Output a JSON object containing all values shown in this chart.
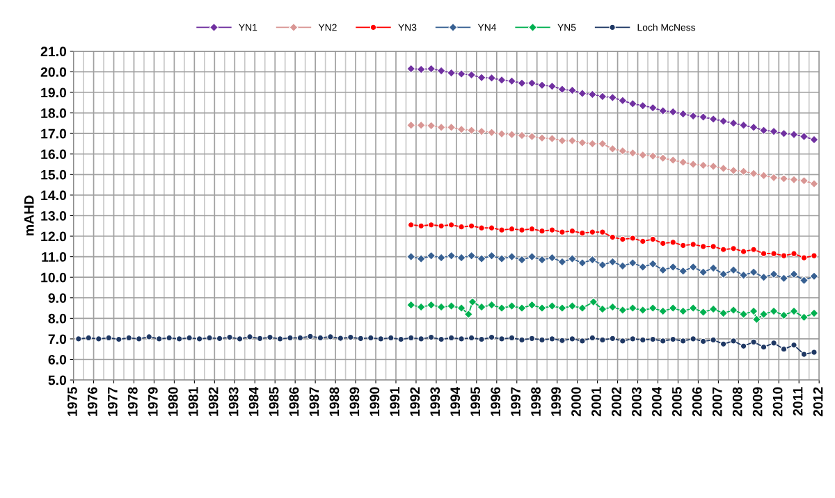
{
  "chart_data": {
    "type": "line",
    "ylabel": "mAHD",
    "xlim": [
      1975,
      2012
    ],
    "xticks": [
      1975,
      1976,
      1977,
      1978,
      1979,
      1980,
      1981,
      1982,
      1983,
      1984,
      1985,
      1986,
      1987,
      1988,
      1989,
      1990,
      1991,
      1992,
      1993,
      1994,
      1995,
      1996,
      1997,
      1998,
      1999,
      2000,
      2001,
      2002,
      2003,
      2004,
      2005,
      2006,
      2007,
      2008,
      2009,
      2010,
      2011,
      2012
    ],
    "ylim": [
      5,
      21
    ],
    "yticks": [
      {
        "value": 5,
        "label": "5.0"
      },
      {
        "value": 6,
        "label": "6.0"
      },
      {
        "value": 7,
        "label": "7.0"
      },
      {
        "value": 8,
        "label": "8.0"
      },
      {
        "value": 9,
        "label": "9.0"
      },
      {
        "value": 10,
        "label": "10.0"
      },
      {
        "value": 11,
        "label": "11.0"
      },
      {
        "value": 12,
        "label": "12.0"
      },
      {
        "value": 13,
        "label": "13.0"
      },
      {
        "value": 14,
        "label": "14.0"
      },
      {
        "value": 15,
        "label": "15.0"
      },
      {
        "value": 16,
        "label": "16.0"
      },
      {
        "value": 17,
        "label": "17.0"
      },
      {
        "value": 18,
        "label": "18.0"
      },
      {
        "value": 19,
        "label": "19.0"
      },
      {
        "value": 20,
        "label": "20.0"
      },
      {
        "value": 21,
        "label": "21.0"
      }
    ],
    "grid": true,
    "legend": "top",
    "line_style": "solid",
    "x": [
      1991.75,
      1992.25,
      1992.75,
      1993.25,
      1993.75,
      1994.25,
      1994.75,
      1995.25,
      1995.75,
      1996.25,
      1996.75,
      1997.25,
      1997.75,
      1998.25,
      1998.75,
      1999.25,
      1999.75,
      2000.25,
      2000.75,
      2001.25,
      2001.75,
      2002.25,
      2002.75,
      2003.25,
      2003.75,
      2004.25,
      2004.75,
      2005.25,
      2005.75,
      2006.25,
      2006.75,
      2007.25,
      2007.75,
      2008.25,
      2008.75,
      2009.25,
      2009.75,
      2010.25,
      2010.75,
      2011.25,
      2011.75
    ],
    "series": [
      {
        "name": "YN1",
        "color": "#7030a0",
        "marker": "diamond",
        "values": [
          20.15,
          20.12,
          20.15,
          20.05,
          19.95,
          19.9,
          19.85,
          19.72,
          19.7,
          19.6,
          19.55,
          19.45,
          19.45,
          19.35,
          19.3,
          19.15,
          19.1,
          18.95,
          18.9,
          18.8,
          18.75,
          18.6,
          18.45,
          18.35,
          18.25,
          18.1,
          18.05,
          17.95,
          17.85,
          17.8,
          17.7,
          17.6,
          17.5,
          17.4,
          17.3,
          17.15,
          17.1,
          17.0,
          16.95,
          16.85,
          16.7
        ]
      },
      {
        "name": "YN2",
        "color": "#d99694",
        "marker": "diamond",
        "values": [
          17.4,
          17.4,
          17.38,
          17.3,
          17.3,
          17.2,
          17.15,
          17.1,
          17.05,
          16.98,
          16.95,
          16.9,
          16.85,
          16.78,
          16.75,
          16.65,
          16.65,
          16.55,
          16.5,
          16.5,
          16.25,
          16.15,
          16.05,
          15.95,
          15.9,
          15.8,
          15.7,
          15.6,
          15.5,
          15.45,
          15.4,
          15.3,
          15.2,
          15.15,
          15.05,
          14.95,
          14.85,
          14.8,
          14.75,
          14.7,
          14.55
        ]
      },
      {
        "name": "YN3",
        "color": "#ff0000",
        "marker": "circle",
        "values": [
          12.55,
          12.5,
          12.55,
          12.5,
          12.55,
          12.45,
          12.5,
          12.4,
          12.4,
          12.3,
          12.35,
          12.3,
          12.35,
          12.25,
          12.3,
          12.2,
          12.25,
          12.15,
          12.2,
          12.2,
          11.95,
          11.85,
          11.9,
          11.75,
          11.85,
          11.65,
          11.7,
          11.55,
          11.6,
          11.5,
          11.5,
          11.35,
          11.4,
          11.25,
          11.35,
          11.15,
          11.15,
          11.05,
          11.15,
          10.95,
          11.05
        ]
      },
      {
        "name": "YN4",
        "color": "#376092",
        "marker": "diamond",
        "values": [
          11.0,
          10.9,
          11.05,
          10.95,
          11.05,
          10.95,
          11.05,
          10.9,
          11.05,
          10.9,
          11.0,
          10.85,
          11.0,
          10.85,
          10.95,
          10.75,
          10.9,
          10.7,
          10.85,
          10.6,
          10.75,
          10.55,
          10.7,
          10.5,
          10.65,
          10.35,
          10.5,
          10.3,
          10.5,
          10.25,
          10.45,
          10.15,
          10.35,
          10.1,
          10.25,
          10.0,
          10.15,
          9.95,
          10.15,
          9.85,
          10.05
        ]
      },
      {
        "name": "YN5",
        "color": "#00b050",
        "marker": "diamond",
        "x": [
          1991.75,
          1992.25,
          1992.75,
          1993.25,
          1993.75,
          1994.25,
          1994.6,
          1994.8,
          1995.25,
          1995.75,
          1996.25,
          1996.75,
          1997.25,
          1997.75,
          1998.25,
          1998.75,
          1999.25,
          1999.75,
          2000.25,
          2000.8,
          2001.25,
          2001.75,
          2002.25,
          2002.75,
          2003.25,
          2003.75,
          2004.25,
          2004.75,
          2005.25,
          2005.75,
          2006.25,
          2006.75,
          2007.25,
          2007.75,
          2008.25,
          2008.75,
          2008.9,
          2009.25,
          2009.75,
          2010.25,
          2010.75,
          2011.25,
          2011.75
        ],
        "values": [
          8.65,
          8.55,
          8.65,
          8.55,
          8.6,
          8.5,
          8.2,
          8.8,
          8.55,
          8.65,
          8.5,
          8.6,
          8.5,
          8.65,
          8.5,
          8.6,
          8.5,
          8.6,
          8.5,
          8.8,
          8.45,
          8.55,
          8.4,
          8.5,
          8.4,
          8.5,
          8.35,
          8.5,
          8.35,
          8.5,
          8.3,
          8.45,
          8.25,
          8.4,
          8.2,
          8.35,
          7.95,
          8.2,
          8.35,
          8.15,
          8.35,
          8.05,
          8.25
        ]
      },
      {
        "name": "Loch McNess",
        "color": "#1f3864",
        "marker": "circle",
        "x": [
          1975.25,
          1975.75,
          1976.25,
          1976.75,
          1977.25,
          1977.75,
          1978.25,
          1978.75,
          1979.25,
          1979.75,
          1980.25,
          1980.75,
          1981.25,
          1981.75,
          1982.25,
          1982.75,
          1983.25,
          1983.75,
          1984.25,
          1984.75,
          1985.25,
          1985.75,
          1986.25,
          1986.75,
          1987.25,
          1987.75,
          1988.25,
          1988.75,
          1989.25,
          1989.75,
          1990.25,
          1990.75,
          1991.25,
          1991.75,
          1992.25,
          1992.75,
          1993.25,
          1993.75,
          1994.25,
          1994.75,
          1995.25,
          1995.75,
          1996.25,
          1996.75,
          1997.25,
          1997.75,
          1998.25,
          1998.75,
          1999.25,
          1999.75,
          2000.25,
          2000.75,
          2001.25,
          2001.75,
          2002.25,
          2002.75,
          2003.25,
          2003.75,
          2004.25,
          2004.75,
          2005.25,
          2005.75,
          2006.25,
          2006.75,
          2007.25,
          2007.75,
          2008.25,
          2008.75,
          2009.25,
          2009.75,
          2010.25,
          2010.75,
          2011.25,
          2011.75
        ],
        "values": [
          7.0,
          7.05,
          7.0,
          7.05,
          6.98,
          7.05,
          7.0,
          7.1,
          7.0,
          7.05,
          7.0,
          7.05,
          7.0,
          7.05,
          7.02,
          7.08,
          7.0,
          7.1,
          7.02,
          7.08,
          7.0,
          7.05,
          7.05,
          7.12,
          7.05,
          7.1,
          7.03,
          7.08,
          7.02,
          7.05,
          7.0,
          7.05,
          6.98,
          7.05,
          7.0,
          7.08,
          6.98,
          7.05,
          7.0,
          7.05,
          6.98,
          7.08,
          7.0,
          7.05,
          6.95,
          7.02,
          6.95,
          7.0,
          6.92,
          7.0,
          6.9,
          7.05,
          6.95,
          7.02,
          6.9,
          7.0,
          6.95,
          6.98,
          6.9,
          6.98,
          6.9,
          7.0,
          6.88,
          6.95,
          6.75,
          6.9,
          6.65,
          6.85,
          6.6,
          6.8,
          6.5,
          6.7,
          6.25,
          6.35
        ]
      }
    ]
  }
}
